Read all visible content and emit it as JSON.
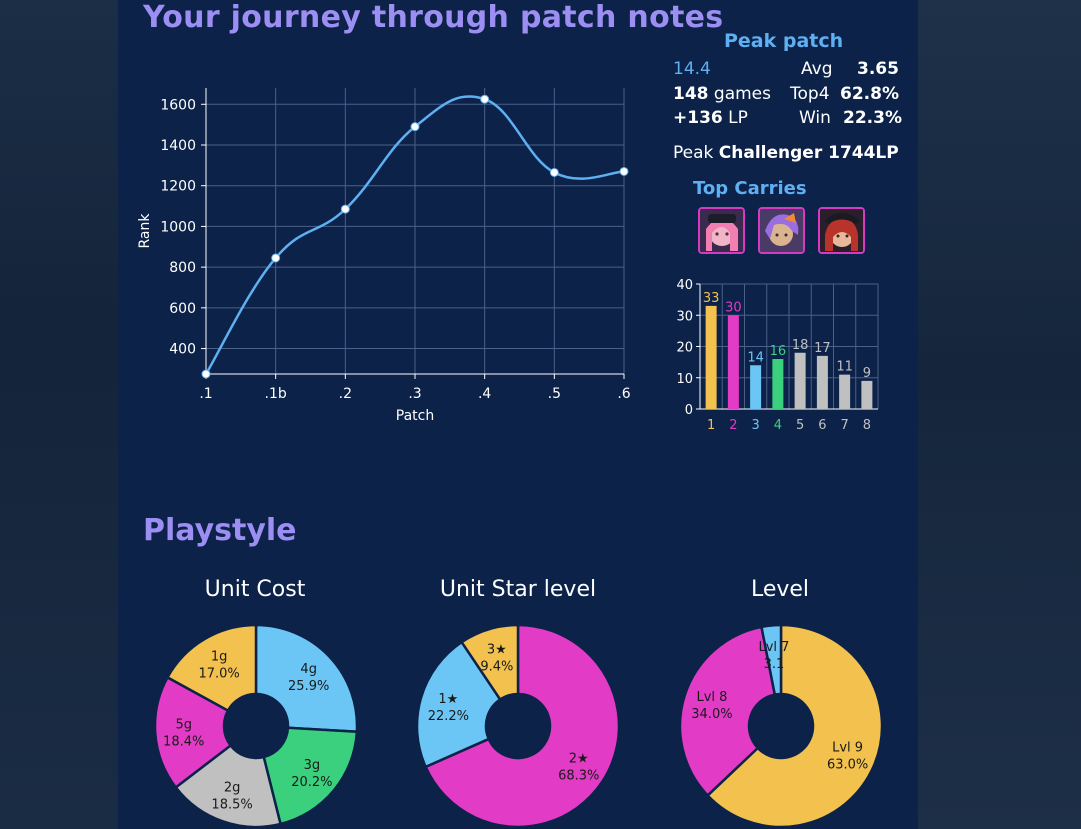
{
  "title": "Your journey through patch notes",
  "rank_chart": {
    "type": "line",
    "xlabel": "Patch",
    "ylabel": "Rank",
    "x": [
      ".1",
      ".1b",
      ".2",
      ".3",
      ".4",
      ".5",
      ".6"
    ],
    "values": [
      275,
      845,
      1085,
      1490,
      1625,
      1265,
      1270
    ],
    "yticks": [
      400,
      600,
      800,
      1000,
      1200,
      1400,
      1600
    ],
    "ylim": [
      275,
      1680
    ],
    "grid": true,
    "color": "#5eb0f2"
  },
  "peak_patch": {
    "title": "Peak patch",
    "patch": "14.4",
    "games_num": "148",
    "games_unit": "games",
    "lp_num": "+136",
    "lp_unit": "LP",
    "avg_label": "Avg",
    "avg_value": "3.65",
    "top4_label": "Top4",
    "top4_value": "62.8%",
    "win_label": "Win",
    "win_value": "22.3%",
    "peak_label": "Peak",
    "peak_value": "Challenger 1744LP"
  },
  "top_carries": {
    "title": "Top Carries",
    "icons": [
      "champion-portrait-pink-hair",
      "champion-portrait-purple-hair",
      "champion-portrait-red-hair"
    ]
  },
  "placements_chart": {
    "type": "bar",
    "categories": [
      "1",
      "2",
      "3",
      "4",
      "5",
      "6",
      "7",
      "8"
    ],
    "values": [
      33,
      30,
      14,
      16,
      18,
      17,
      11,
      9
    ],
    "colors": [
      "#f2c14e",
      "#e23bc6",
      "#6cc6f5",
      "#3ad07e",
      "#c0c0c0",
      "#c0c0c0",
      "#c0c0c0",
      "#c0c0c0"
    ],
    "ylim": [
      0,
      40
    ],
    "yticks": [
      0,
      10,
      20,
      30,
      40
    ]
  },
  "playstyle_title": "Playstyle",
  "pies": [
    {
      "title": "Unit Cost",
      "slices": [
        {
          "label": "4g",
          "pct": "25.9%",
          "value": 25.9,
          "color": "#6cc6f5"
        },
        {
          "label": "3g",
          "pct": "20.2%",
          "value": 20.2,
          "color": "#3ad07e"
        },
        {
          "label": "2g",
          "pct": "18.5%",
          "value": 18.5,
          "color": "#c0c0c0"
        },
        {
          "label": "5g",
          "pct": "18.4%",
          "value": 18.4,
          "color": "#e23bc6"
        },
        {
          "label": "1g",
          "pct": "17.0%",
          "value": 17.0,
          "color": "#f2c14e"
        }
      ]
    },
    {
      "title": "Unit Star level",
      "slices": [
        {
          "label": "2★",
          "pct": "68.3%",
          "value": 68.3,
          "color": "#e23bc6"
        },
        {
          "label": "1★",
          "pct": "22.2%",
          "value": 22.2,
          "color": "#6cc6f5"
        },
        {
          "label": "3★",
          "pct": "9.4%",
          "value": 9.4,
          "color": "#f2c14e"
        }
      ]
    },
    {
      "title": "Level",
      "slices": [
        {
          "label": "Lvl 9",
          "pct": "63.0%",
          "value": 63.0,
          "color": "#f2c14e"
        },
        {
          "label": "Lvl 8",
          "pct": "34.0%",
          "value": 34.0,
          "color": "#e23bc6"
        },
        {
          "label": "Lvl 7",
          "pct": "3.1",
          "value": 3.1,
          "color": "#6cc6f5"
        }
      ]
    }
  ],
  "chart_data": [
    {
      "type": "line",
      "xlabel": "Patch",
      "ylabel": "Rank",
      "x": [
        ".1",
        ".1b",
        ".2",
        ".3",
        ".4",
        ".5",
        ".6"
      ],
      "values": [
        275,
        845,
        1085,
        1490,
        1625,
        1265,
        1270
      ],
      "ylim": [
        275,
        1680
      ]
    },
    {
      "type": "bar",
      "categories": [
        "1",
        "2",
        "3",
        "4",
        "5",
        "6",
        "7",
        "8"
      ],
      "values": [
        33,
        30,
        14,
        16,
        18,
        17,
        11,
        9
      ],
      "ylim": [
        0,
        40
      ]
    },
    {
      "type": "pie",
      "title": "Unit Cost",
      "categories": [
        "4g",
        "3g",
        "2g",
        "5g",
        "1g"
      ],
      "values": [
        25.9,
        20.2,
        18.5,
        18.4,
        17.0
      ]
    },
    {
      "type": "pie",
      "title": "Unit Star level",
      "categories": [
        "2★",
        "1★",
        "3★"
      ],
      "values": [
        68.3,
        22.2,
        9.4
      ]
    },
    {
      "type": "pie",
      "title": "Level",
      "categories": [
        "Lvl 9",
        "Lvl 8",
        "Lvl 7"
      ],
      "values": [
        63.0,
        34.0,
        3.1
      ]
    }
  ]
}
